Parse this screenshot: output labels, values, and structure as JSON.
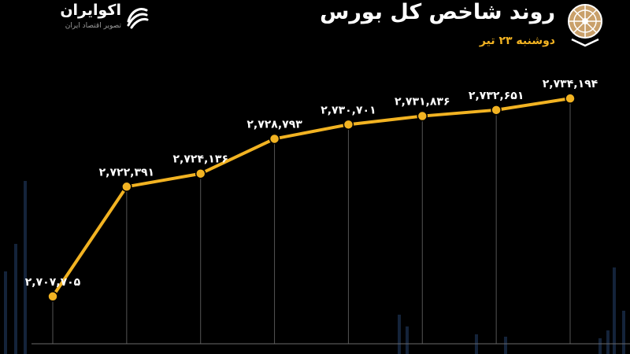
{
  "header": {
    "title": "روند شاخص کل بورس",
    "subtitle": "دوشنبه ۲۳ تیر"
  },
  "brand": {
    "name": "اکوایران",
    "tagline": "تصویر اقتصاد ایران"
  },
  "colors": {
    "background": "#000000",
    "line": "#f2b322",
    "label": "#ffffff",
    "gridline": "#555555",
    "accent": "#f2b322"
  },
  "icons": [
    "ekoiran-logo-icon",
    "stock-exchange-emblem-icon"
  ],
  "chart_data": {
    "type": "line",
    "title": "روند شاخص کل بورس",
    "subtitle": "دوشنبه ۲۳ تیر",
    "xlabel": "",
    "ylabel": "",
    "ylim": [
      2700000,
      2740000
    ],
    "grid": "vertical",
    "legend": "none",
    "series": [
      {
        "values": [
          2707705,
          2722391,
          2724136,
          2728793,
          2730701,
          2731836,
          2732651,
          2734194
        ],
        "labels": [
          "۲,۷۰۷,۷۰۵",
          "۲,۷۲۲,۳۹۱",
          "۲,۷۲۴,۱۳۶",
          "۲,۷۲۸,۷۹۳",
          "۲,۷۳۰,۷۰۱",
          "۲,۷۳۱,۸۳۶",
          "۲,۷۳۲,۶۵۱",
          "۲,۷۳۴,۱۹۴"
        ]
      }
    ]
  }
}
